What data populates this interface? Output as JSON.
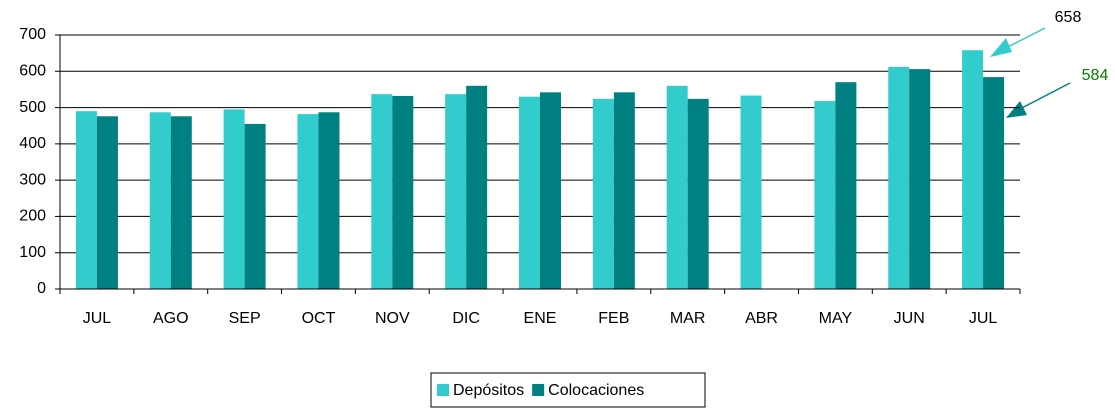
{
  "chart_data": {
    "type": "bar",
    "categories": [
      "JUL",
      "AGO",
      "SEP",
      "OCT",
      "NOV",
      "DIC",
      "ENE",
      "FEB",
      "MAR",
      "ABR",
      "MAY",
      "JUN",
      "JUL"
    ],
    "series": [
      {
        "name": "Depósitos",
        "color": "#33cccc",
        "values": [
          490,
          487,
          495,
          482,
          537,
          537,
          530,
          524,
          560,
          533,
          518,
          612,
          658
        ]
      },
      {
        "name": "Colocaciones",
        "color": "#008080",
        "values": [
          476,
          476,
          455,
          487,
          532,
          560,
          542,
          542,
          524,
          null,
          570,
          606,
          584
        ]
      }
    ],
    "ylim": [
      0,
      700
    ],
    "yticks": [
      0,
      100,
      200,
      300,
      400,
      500,
      600,
      700
    ],
    "grid": true,
    "legend": "bottom"
  }
}
